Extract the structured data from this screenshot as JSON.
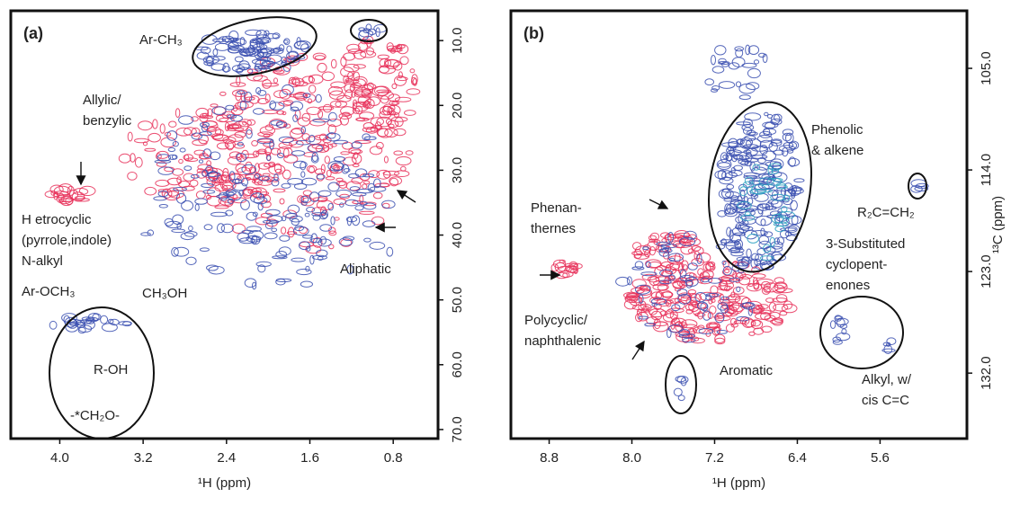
{
  "chart_data": [
    {
      "type": "contour",
      "panel_label": "(a)",
      "x_label": "¹H (ppm)",
      "xlim": [
        4.47,
        0.37
      ],
      "ylim": [
        5.4,
        71.4
      ],
      "xticks": [
        {
          "value": 4,
          "label": "4.0"
        },
        {
          "value": 3.2,
          "label": "3.2"
        },
        {
          "value": 2.4,
          "label": "2.4"
        },
        {
          "value": 1.6,
          "label": "1.6"
        },
        {
          "value": 0.8,
          "label": "0.8"
        }
      ],
      "yticks": [
        {
          "value": 10,
          "label": "10.0"
        },
        {
          "value": 20,
          "label": "20.0"
        },
        {
          "value": 30,
          "label": "30.0"
        },
        {
          "value": 40,
          "label": "40.0"
        },
        {
          "value": 50,
          "label": "50.0"
        },
        {
          "value": 60,
          "label": "60.0"
        },
        {
          "value": 70,
          "label": "70.0"
        }
      ],
      "annotations": [
        [
          "Ar-CH₃"
        ],
        [
          "Allylic/",
          "benzylic"
        ],
        [
          "H etrocyclic",
          "(pyrrole,indole)",
          "N-alkyl"
        ],
        [
          "Aliphatic"
        ],
        [
          "Ar-OCH₃"
        ],
        [
          "CH₃OH"
        ],
        [
          "R-OH"
        ],
        [
          "-*CH₂O-"
        ]
      ]
    },
    {
      "type": "contour",
      "panel_label": "(b)",
      "x_label": "¹H (ppm)",
      "y_label": "¹³C (ppm)",
      "xlim": [
        9.17,
        4.76
      ],
      "ylim": [
        99.9,
        137.8
      ],
      "xticks": [
        {
          "value": 8.8,
          "label": "8.8"
        },
        {
          "value": 8,
          "label": "8.0"
        },
        {
          "value": 7.2,
          "label": "7.2"
        },
        {
          "value": 6.4,
          "label": "6.4"
        },
        {
          "value": 5.6,
          "label": "5.6"
        }
      ],
      "yticks": [
        {
          "value": 105,
          "label": "105.0"
        },
        {
          "value": 114,
          "label": "114.0"
        },
        {
          "value": 123,
          "label": "123.0"
        },
        {
          "value": 132,
          "label": "132.0"
        }
      ],
      "annotations": [
        [
          "Phenolic",
          "& alkene"
        ],
        [
          "R₂C=CH₂"
        ],
        [
          "3-Substituted",
          "cyclopent-",
          "enones"
        ],
        [
          "Phenan-",
          "thernes"
        ],
        [
          "Polycyclic/",
          "naphthalenic"
        ],
        [
          "Aromatic"
        ],
        [
          "Alkyl, w/",
          "cis C=C"
        ]
      ]
    }
  ]
}
